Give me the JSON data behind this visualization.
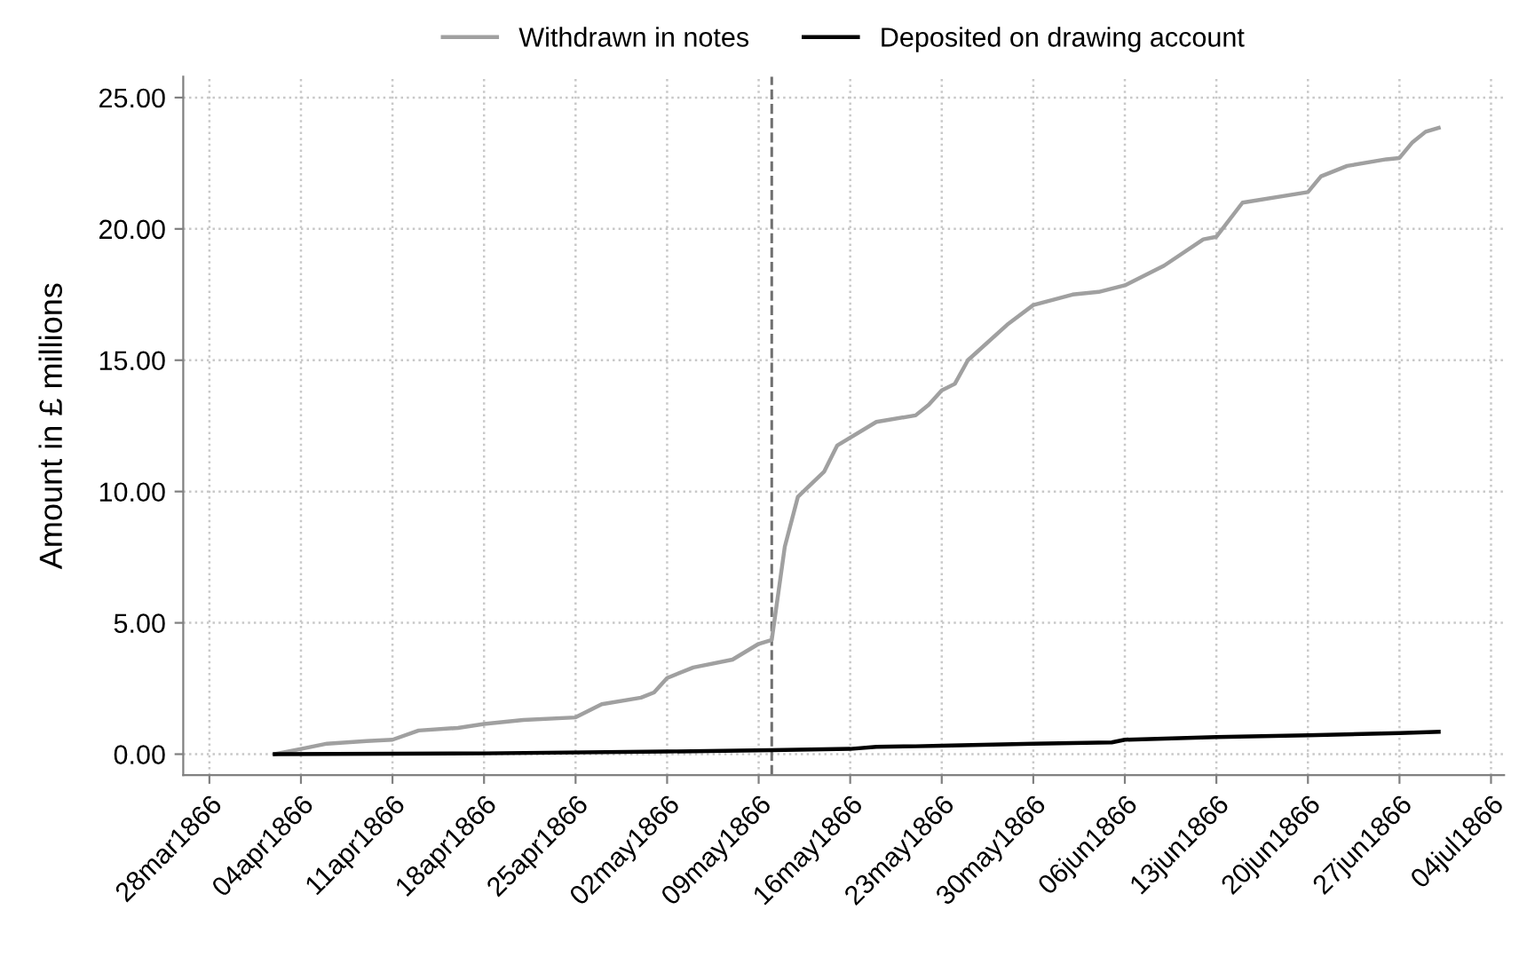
{
  "chart_data": {
    "type": "line",
    "ylabel": "Amount in £ millions",
    "legend": "top",
    "grid": true,
    "line_style": "solid",
    "marker": "none",
    "series": [
      {
        "name": "Withdrawn in notes",
        "color": "#a0a0a0",
        "x": [
          "1866-04-02",
          "1866-04-04",
          "1866-04-06",
          "1866-04-09",
          "1866-04-11",
          "1866-04-13",
          "1866-04-16",
          "1866-04-18",
          "1866-04-21",
          "1866-04-25",
          "1866-04-27",
          "1866-04-30",
          "1866-05-01",
          "1866-05-02",
          "1866-05-04",
          "1866-05-07",
          "1866-05-09",
          "1866-05-10",
          "1866-05-11",
          "1866-05-12",
          "1866-05-14",
          "1866-05-15",
          "1866-05-18",
          "1866-05-21",
          "1866-05-22",
          "1866-05-23",
          "1866-05-24",
          "1866-05-25",
          "1866-05-28",
          "1866-05-30",
          "1866-06-02",
          "1866-06-04",
          "1866-06-06",
          "1866-06-09",
          "1866-06-12",
          "1866-06-13",
          "1866-06-15",
          "1866-06-20",
          "1866-06-21",
          "1866-06-23",
          "1866-06-26",
          "1866-06-27",
          "1866-06-28",
          "1866-06-29",
          "1866-06-30"
        ],
        "values": [
          0.0,
          0.2,
          0.4,
          0.5,
          0.55,
          0.9,
          1.0,
          1.15,
          1.3,
          1.4,
          1.9,
          2.15,
          2.35,
          2.9,
          3.3,
          3.6,
          4.2,
          4.35,
          7.9,
          9.8,
          10.75,
          11.75,
          12.65,
          12.9,
          13.3,
          13.85,
          14.1,
          15.0,
          16.35,
          17.1,
          17.5,
          17.6,
          17.85,
          18.6,
          19.6,
          19.7,
          21.0,
          21.4,
          22.0,
          22.4,
          22.65,
          22.7,
          23.3,
          23.7,
          23.85
        ]
      },
      {
        "name": "Deposited on drawing account",
        "color": "#000000",
        "x": [
          "1866-04-02",
          "1866-04-18",
          "1866-05-02",
          "1866-05-10",
          "1866-05-16",
          "1866-05-18",
          "1866-05-21",
          "1866-05-23",
          "1866-05-30",
          "1866-06-05",
          "1866-06-06",
          "1866-06-13",
          "1866-06-20",
          "1866-06-27",
          "1866-06-30"
        ],
        "values": [
          0.0,
          0.03,
          0.1,
          0.15,
          0.2,
          0.28,
          0.3,
          0.32,
          0.4,
          0.45,
          0.55,
          0.65,
          0.72,
          0.8,
          0.85
        ]
      }
    ],
    "xlim": [
      "1866-03-26",
      "1866-07-05"
    ],
    "xticks": [
      {
        "value": "1866-03-28",
        "label": "28mar1866"
      },
      {
        "value": "1866-04-04",
        "label": "04apr1866"
      },
      {
        "value": "1866-04-11",
        "label": "11apr1866"
      },
      {
        "value": "1866-04-18",
        "label": "18apr1866"
      },
      {
        "value": "1866-04-25",
        "label": "25apr1866"
      },
      {
        "value": "1866-05-02",
        "label": "02may1866"
      },
      {
        "value": "1866-05-09",
        "label": "09may1866"
      },
      {
        "value": "1866-05-16",
        "label": "16may1866"
      },
      {
        "value": "1866-05-23",
        "label": "23may1866"
      },
      {
        "value": "1866-05-30",
        "label": "30may1866"
      },
      {
        "value": "1866-06-06",
        "label": "06jun1866"
      },
      {
        "value": "1866-06-13",
        "label": "13jun1866"
      },
      {
        "value": "1866-06-20",
        "label": "20jun1866"
      },
      {
        "value": "1866-06-27",
        "label": "27jun1866"
      },
      {
        "value": "1866-07-04",
        "label": "04jul1866"
      }
    ],
    "ylim": [
      -0.8,
      25.8
    ],
    "yticks": [
      {
        "value": 0,
        "label": "0.00"
      },
      {
        "value": 5,
        "label": "5.00"
      },
      {
        "value": 10,
        "label": "10.00"
      },
      {
        "value": 15,
        "label": "15.00"
      },
      {
        "value": 20,
        "label": "20.00"
      },
      {
        "value": 25,
        "label": "25.00"
      }
    ],
    "ref_lines": [
      {
        "axis": "x",
        "value": "1866-05-10",
        "label": null,
        "color": "#707070",
        "line_style": "dashed"
      }
    ]
  }
}
